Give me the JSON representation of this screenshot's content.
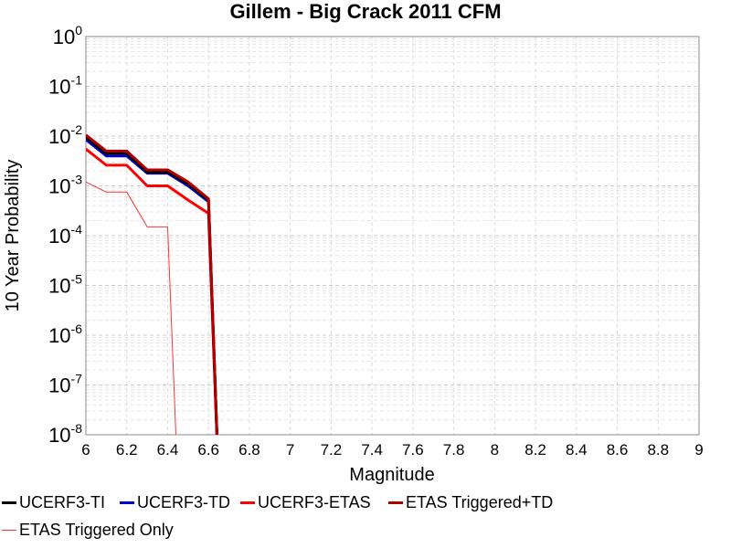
{
  "chart_data": {
    "type": "line",
    "title": "Gillem - Big Crack 2011 CFM",
    "xlabel": "Magnitude",
    "ylabel": "10 Year Probability",
    "xlim": [
      6,
      9
    ],
    "ylim": [
      1e-08,
      1
    ],
    "yscale": "log",
    "grid": true,
    "legend_position": "bottom",
    "x_ticks": [
      "6",
      "6.2",
      "6.4",
      "6.6",
      "6.8",
      "7",
      "7.2",
      "7.4",
      "7.6",
      "7.8",
      "8",
      "8.2",
      "8.4",
      "8.6",
      "8.8",
      "9"
    ],
    "y_ticks": [
      {
        "base": "10",
        "exp": "0"
      },
      {
        "base": "10",
        "exp": "-1"
      },
      {
        "base": "10",
        "exp": "-2"
      },
      {
        "base": "10",
        "exp": "-3"
      },
      {
        "base": "10",
        "exp": "-4"
      },
      {
        "base": "10",
        "exp": "-5"
      },
      {
        "base": "10",
        "exp": "-6"
      },
      {
        "base": "10",
        "exp": "-7"
      },
      {
        "base": "10",
        "exp": "-8"
      }
    ],
    "series": [
      {
        "name": "UCERF3-TI",
        "color": "#000000",
        "width": 3,
        "x": [
          6.0,
          6.1,
          6.2,
          6.3,
          6.4,
          6.5,
          6.6,
          6.65
        ],
        "y": [
          0.0095,
          0.0045,
          0.0045,
          0.0019,
          0.0019,
          0.0011,
          0.00052,
          1e-09
        ]
      },
      {
        "name": "UCERF3-TD",
        "color": "#0000cc",
        "width": 3,
        "x": [
          6.0,
          6.1,
          6.2,
          6.3,
          6.4,
          6.5,
          6.6,
          6.65
        ],
        "y": [
          0.0085,
          0.004,
          0.004,
          0.0018,
          0.0018,
          0.001,
          0.00048,
          1e-09
        ]
      },
      {
        "name": "UCERF3-ETAS",
        "color": "#ff0000",
        "width": 3,
        "x": [
          6.0,
          6.1,
          6.2,
          6.3,
          6.4,
          6.5,
          6.6,
          6.65
        ],
        "y": [
          0.0055,
          0.0026,
          0.0026,
          0.001,
          0.001,
          0.00052,
          0.00028,
          1e-09
        ]
      },
      {
        "name": "ETAS Triggered+TD",
        "color": "#b00000",
        "width": 3,
        "x": [
          6.0,
          6.1,
          6.2,
          6.3,
          6.4,
          6.5,
          6.6,
          6.65
        ],
        "y": [
          0.0105,
          0.005,
          0.005,
          0.0021,
          0.0021,
          0.0012,
          0.00055,
          1e-09
        ]
      },
      {
        "name": "ETAS Triggered Only",
        "color": "#ff3333",
        "width": 1,
        "x": [
          6.0,
          6.1,
          6.2,
          6.3,
          6.4,
          6.45
        ],
        "y": [
          0.0012,
          0.00075,
          0.00075,
          0.00015,
          0.00015,
          1e-09
        ]
      }
    ]
  }
}
